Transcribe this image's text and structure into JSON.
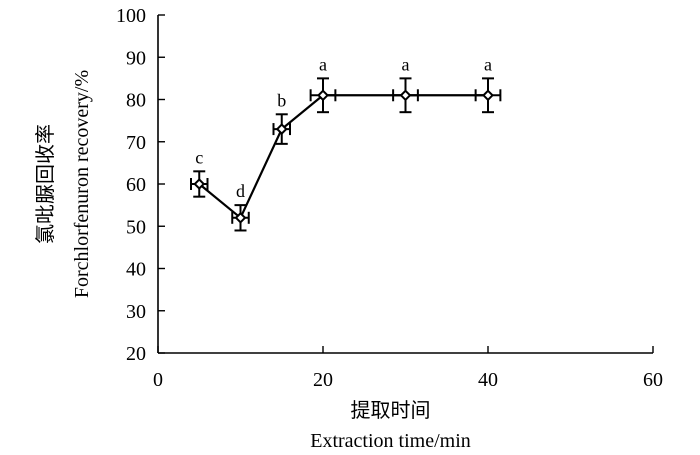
{
  "chart_data": {
    "type": "line",
    "title": "",
    "xlabel_cn": "提取时间",
    "xlabel_en": "Extraction time/min",
    "ylabel_cn": "氯吡脲回收率",
    "ylabel_en": "Forchlorfenuron recovery/%",
    "xlim": [
      0,
      60
    ],
    "ylim": [
      20,
      100
    ],
    "xticks": [
      0,
      20,
      40,
      60
    ],
    "yticks": [
      20,
      30,
      40,
      50,
      60,
      70,
      80,
      90,
      100
    ],
    "grid": false,
    "series": [
      {
        "name": "Forchlorfenuron recovery",
        "x": [
          5,
          10,
          15,
          20,
          30,
          40
        ],
        "y": [
          60,
          52,
          73,
          81,
          81,
          81
        ],
        "y_err": [
          3,
          3,
          3.5,
          4,
          4,
          4
        ],
        "x_err": [
          1,
          1,
          1,
          1.5,
          1.5,
          1.5
        ],
        "labels": [
          "c",
          "d",
          "b",
          "a",
          "a",
          "a"
        ]
      }
    ]
  }
}
